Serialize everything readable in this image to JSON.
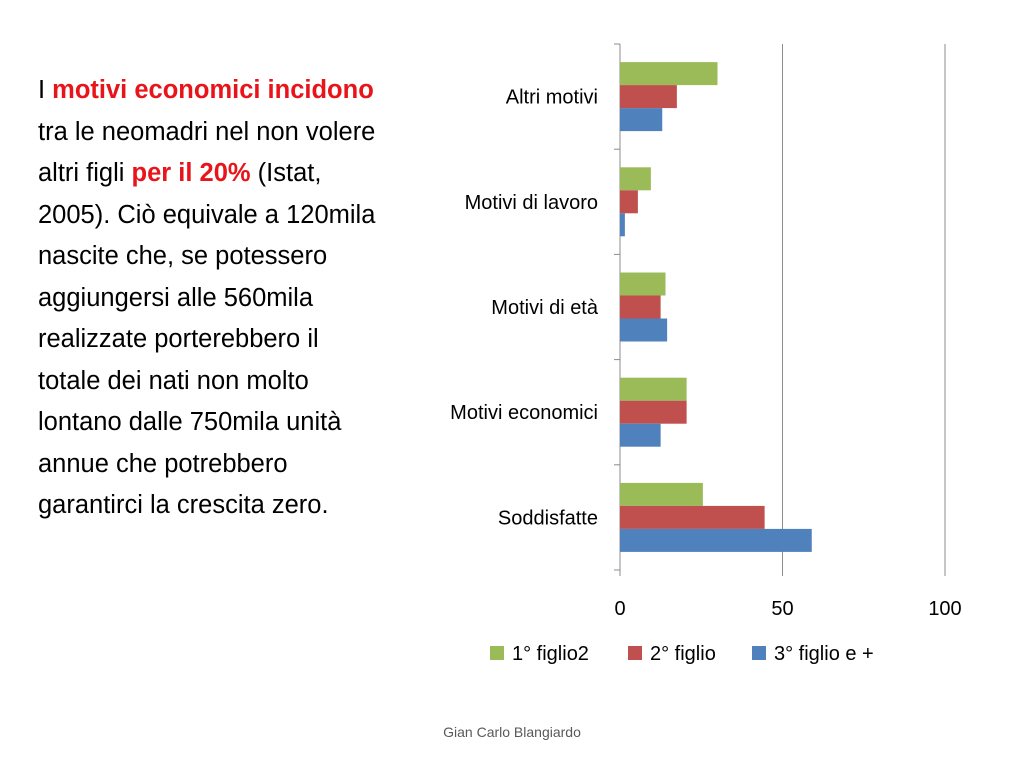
{
  "slide": {
    "paragraph": [
      {
        "text": "I ",
        "highlight": false
      },
      {
        "text": "motivi economici incidono",
        "highlight": true
      },
      {
        "text": " tra le neomadri nel non volere altri figli ",
        "highlight": false
      },
      {
        "text": "per il 20%",
        "highlight": true
      },
      {
        "text": " (Istat, 2005). Ciò equivale a 120mila nascite che, se potessero aggiungersi alle 560mila realizzate porterebbero il totale dei nati non molto lontano dalle 750mila unità annue che potrebbero garantirci la crescita zero.",
        "highlight": false
      }
    ],
    "highlight_color": "#e8141a",
    "footer": "Gian Carlo Blangiardo"
  },
  "chart_data": {
    "type": "bar",
    "orientation": "horizontal",
    "categories": [
      "Altri motivi",
      "Motivi di lavoro",
      "Motivi di età",
      "Motivi economici",
      "Soddisfatte"
    ],
    "series": [
      {
        "name": "1° figlio2",
        "color": "#9bbb59",
        "values": [
          30,
          9.5,
          14,
          20.5,
          25.5
        ]
      },
      {
        "name": "2° figlio",
        "color": "#c0504d",
        "values": [
          17.5,
          5.5,
          12.5,
          20.5,
          44.5
        ]
      },
      {
        "name": "3° figlio e +",
        "color": "#4f81bd",
        "values": [
          13,
          1.5,
          14.5,
          12.5,
          59
        ]
      }
    ],
    "xlim": [
      0,
      100
    ],
    "xticks": [
      0,
      50,
      100
    ],
    "gridlines": "vertical",
    "legend_position": "bottom"
  }
}
